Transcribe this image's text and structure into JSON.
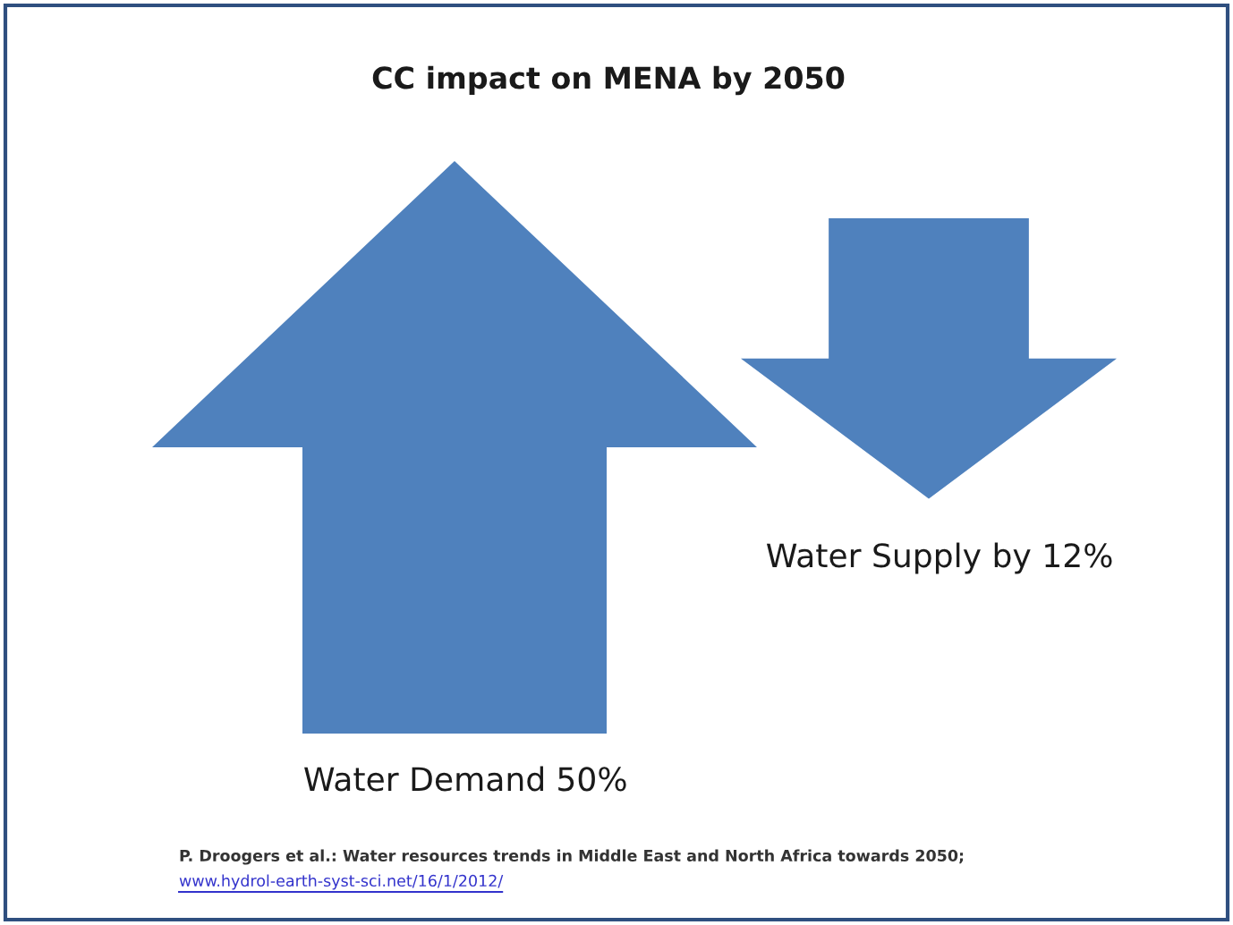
{
  "chart_data": {
    "type": "other",
    "title": "CC impact on MENA by 2050",
    "categories": [
      "Water Demand",
      "Water Supply by"
    ],
    "values": [
      50,
      12
    ],
    "value_labels": [
      "50%",
      "12%"
    ],
    "colors": [
      "#4f81bd",
      "#4f81bd"
    ],
    "annotations": [
      "P. Droogers et al.: Water resources trends in Middle East and North Africa towards 2050;",
      "www.hydrol-earth-syst-sci.net/16/1/2012/"
    ]
  }
}
